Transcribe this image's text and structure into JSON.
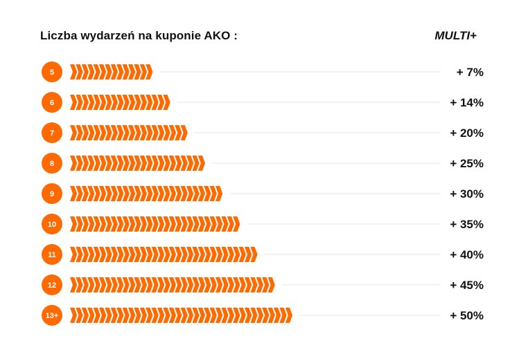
{
  "header": {
    "title": "Liczba wydarzeń na kuponie AKO :",
    "column_label": "MULTI+"
  },
  "colors": {
    "accent": "#ff6a00",
    "text": "#111111",
    "guide_line": "#e4e4e4"
  },
  "chart_data": {
    "type": "bar",
    "orientation": "horizontal",
    "title": "Liczba wydarzeń na kuponie AKO :",
    "value_column_label": "MULTI+",
    "categories": [
      "5",
      "6",
      "7",
      "8",
      "9",
      "10",
      "11",
      "12",
      "13+"
    ],
    "values": [
      7,
      14,
      20,
      25,
      30,
      35,
      40,
      45,
      50
    ],
    "value_labels": [
      "+ 7%",
      "+ 14%",
      "+ 20%",
      "+ 25%",
      "+ 30%",
      "+ 35%",
      "+ 40%",
      "+ 45%",
      "+ 50%"
    ],
    "chevron_counts": [
      14,
      17,
      20,
      23,
      26,
      29,
      32,
      35,
      38
    ],
    "unit": "%",
    "grid": false,
    "legend": "none"
  }
}
